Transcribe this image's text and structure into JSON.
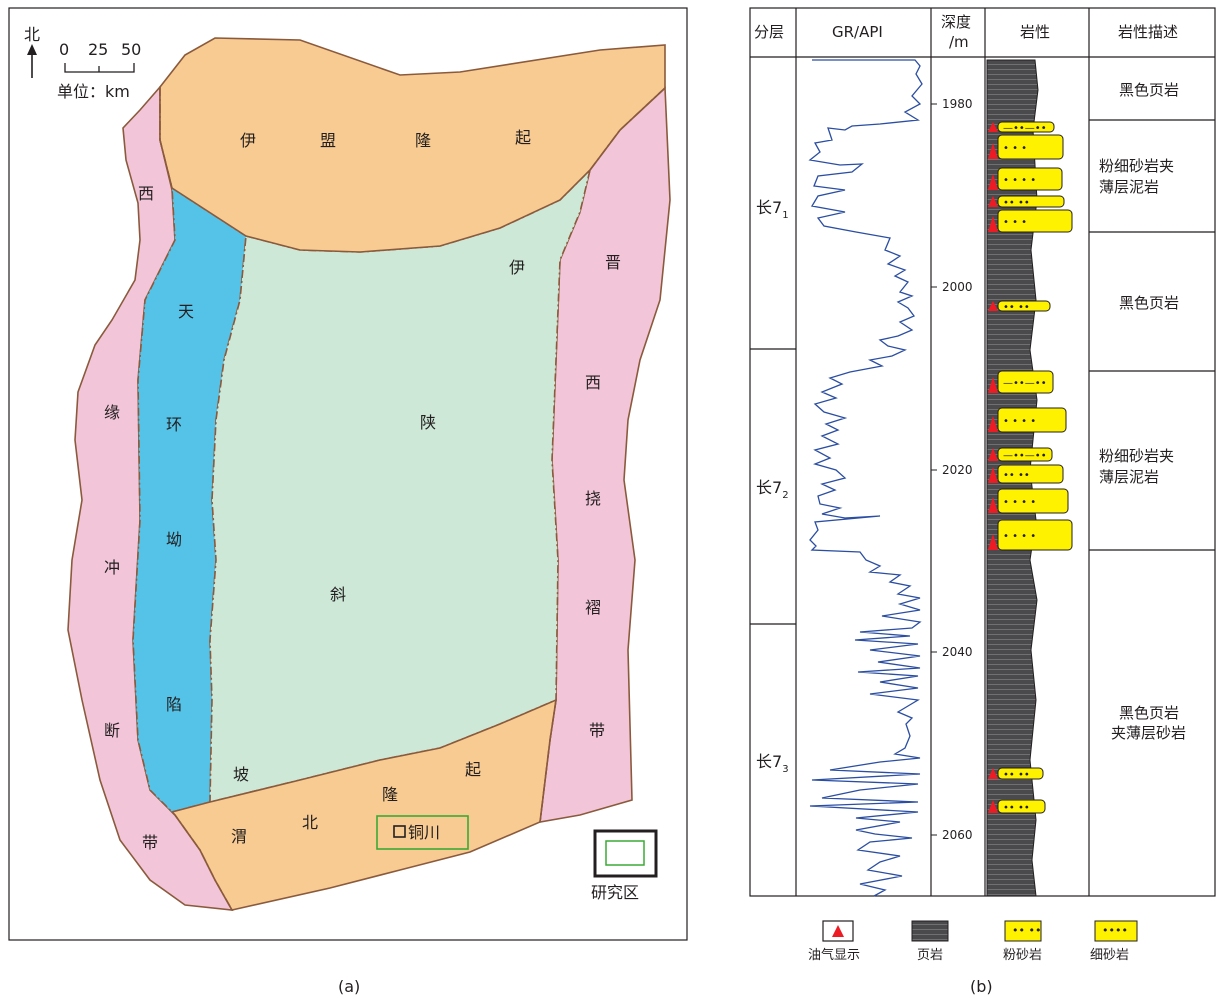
{
  "panel_a": {
    "caption": "(a)",
    "north_label": "北",
    "scale_ticks": [
      "0",
      "25",
      "50"
    ],
    "scale_unit": "单位：km",
    "regions": {
      "yimeng_uplift": [
        "伊",
        "盟",
        "隆",
        "起"
      ],
      "western_margin": [
        "西",
        "缘",
        "冲",
        "断",
        "带"
      ],
      "tianhuan_depression": [
        "天",
        "环",
        "坳",
        "陷"
      ],
      "yishan_slope": [
        "伊",
        "陕",
        "斜",
        "坡"
      ],
      "jinxi_fold_belt": [
        "晋",
        "西",
        "挠",
        "褶",
        "带"
      ],
      "weibei_uplift": [
        "渭",
        "北",
        "隆",
        "起"
      ]
    },
    "location_label": "铜川",
    "legend_label": "研究区",
    "colors": {
      "yimeng": "#f7cb91",
      "margin": "#f2c6d8",
      "depression": "#55c3e8",
      "slope": "#cde8d7",
      "weibei": "#f7cb91",
      "boundary": "#8b5a3c",
      "study_area": "#3aaa35"
    }
  },
  "panel_b": {
    "caption": "(b)",
    "headers": {
      "layer": "分层",
      "gr": "GR/API",
      "depth_l1": "深度",
      "depth_l2": "/m",
      "lith": "岩性",
      "desc": "岩性描述"
    },
    "depth_ticks": [
      "1980",
      "2000",
      "2020",
      "2040",
      "2060"
    ],
    "layers": [
      {
        "main": "长7",
        "sub": "1"
      },
      {
        "main": "长7",
        "sub": "2"
      },
      {
        "main": "长7",
        "sub": "3"
      }
    ],
    "descriptions": [
      {
        "lines": [
          "黑色页岩"
        ]
      },
      {
        "lines": [
          "粉细砂岩夹",
          "薄层泥岩"
        ]
      },
      {
        "lines": [
          "黑色页岩"
        ]
      },
      {
        "lines": [
          "粉细砂岩夹",
          "薄层泥岩"
        ]
      },
      {
        "lines": [
          "黑色页岩",
          "夹薄层砂岩"
        ]
      }
    ],
    "legend": [
      "油气显示",
      "页岩",
      "粉砂岩",
      "细砂岩"
    ],
    "colors": {
      "gr_curve": "#2b4ea2",
      "shale": "#4a4a4c",
      "sand": "#fff200",
      "oil": "#ed1c24"
    }
  }
}
